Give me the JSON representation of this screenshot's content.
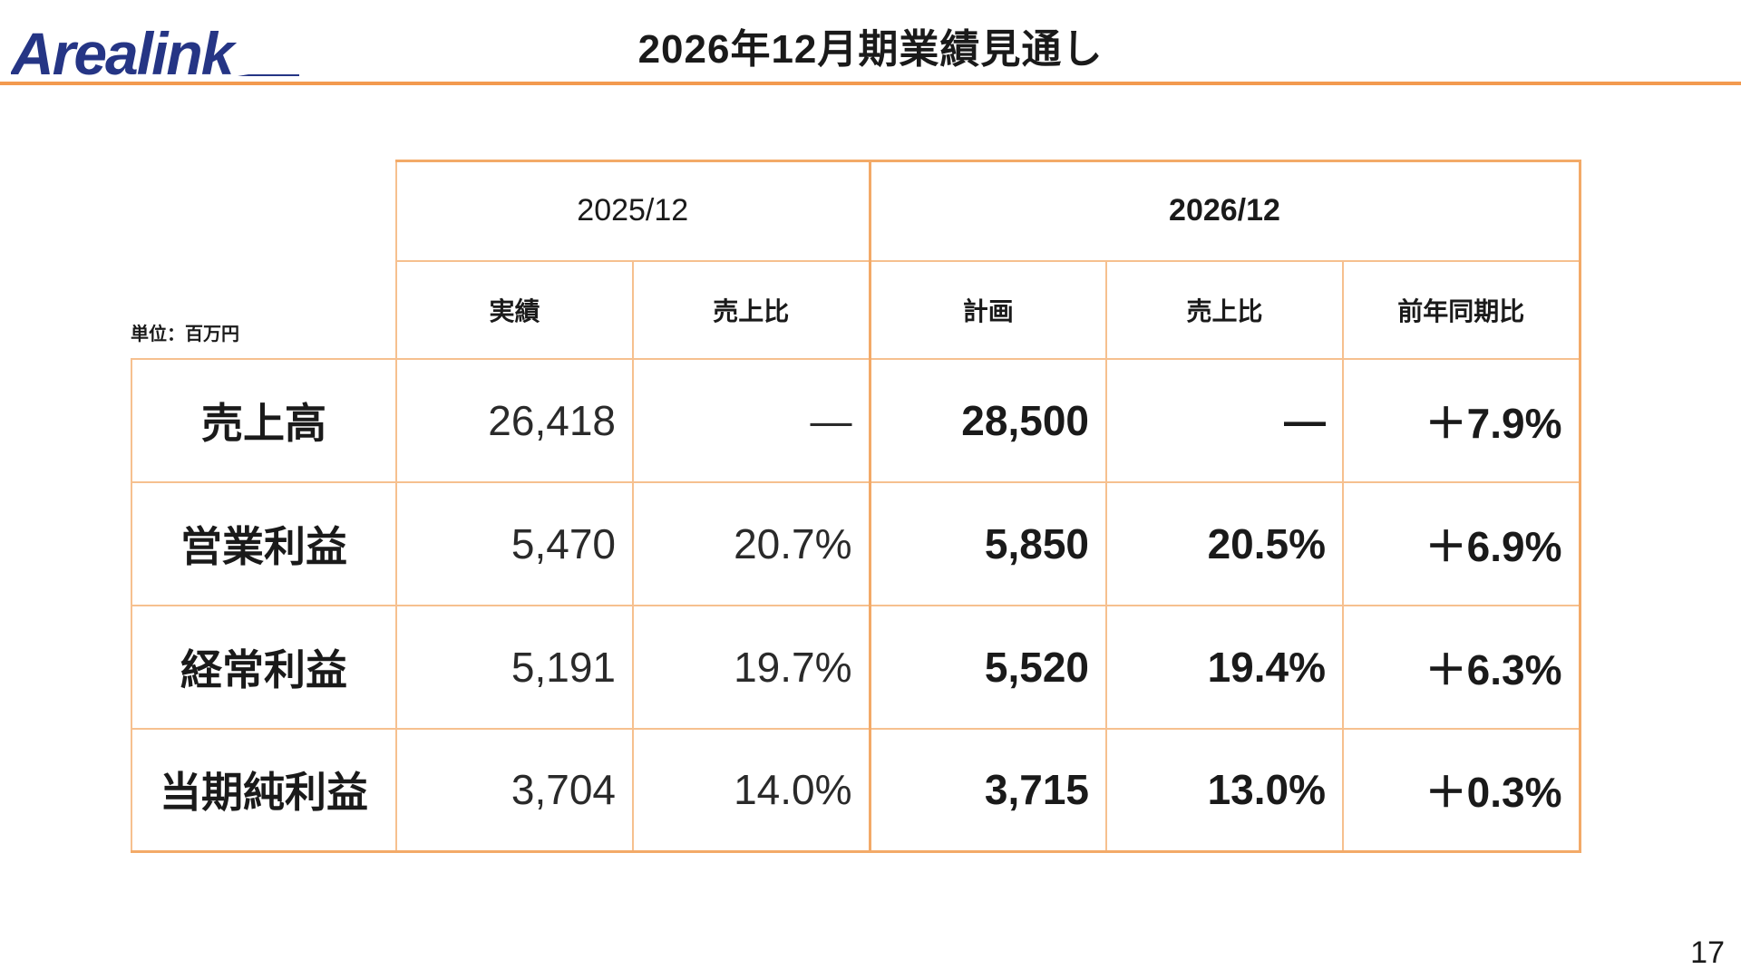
{
  "header": {
    "logo_text": "Arealink",
    "title": "2026年12月期業績見通し",
    "rule_color": "#f39a4f",
    "logo_color": "#253585"
  },
  "table": {
    "unit_label": "単位：百万円",
    "border_color": "#f6c08f",
    "groups": [
      {
        "label": "2025/12",
        "bold": false
      },
      {
        "label": "2026/12",
        "bold": true
      }
    ],
    "columns": [
      "実績",
      "売上比",
      "計画",
      "売上比",
      "前年同期比"
    ],
    "rows": [
      {
        "label": "売上高",
        "actual": "26,418",
        "actual_ratio": "―",
        "plan": "28,500",
        "plan_ratio": "―",
        "yoy": "＋7.9%"
      },
      {
        "label": "営業利益",
        "actual": "5,470",
        "actual_ratio": "20.7%",
        "plan": "5,850",
        "plan_ratio": "20.5%",
        "yoy": "＋6.9%"
      },
      {
        "label": "経常利益",
        "actual": "5,191",
        "actual_ratio": "19.7%",
        "plan": "5,520",
        "plan_ratio": "19.4%",
        "yoy": "＋6.3%"
      },
      {
        "label": "当期純利益",
        "actual": "3,704",
        "actual_ratio": "14.0%",
        "plan": "3,715",
        "plan_ratio": "13.0%",
        "yoy": "＋0.3%"
      }
    ]
  },
  "footer": {
    "page_number": "17"
  }
}
